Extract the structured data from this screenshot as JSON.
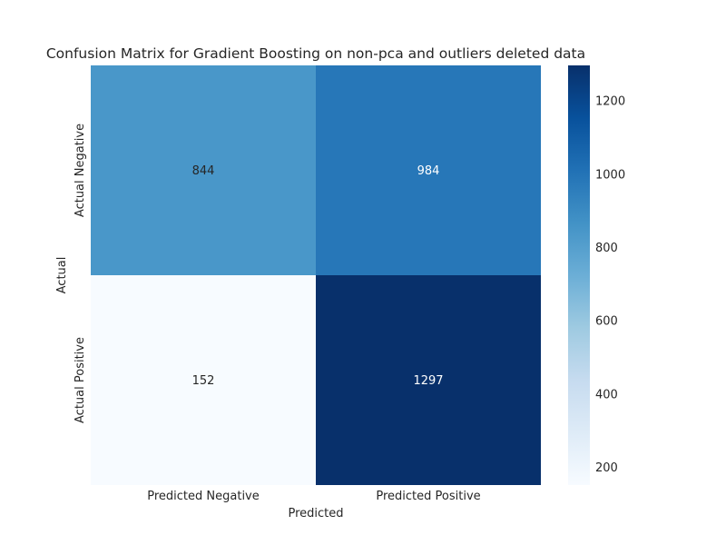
{
  "chart_data": {
    "type": "heatmap",
    "title": "Confusion Matrix for Gradient Boosting on non-pca and outliers deleted data",
    "xlabel": "Predicted",
    "ylabel": "Actual",
    "x_categories": [
      "Predicted Negative",
      "Predicted Positive"
    ],
    "y_categories": [
      "Actual Negative",
      "Actual Positive"
    ],
    "values": [
      [
        844,
        984
      ],
      [
        152,
        1297
      ]
    ],
    "colormap": "Blues",
    "colorbar": {
      "range": [
        152,
        1297
      ],
      "ticks": [
        200,
        400,
        600,
        800,
        1000,
        1200
      ],
      "tick_labels": [
        "200",
        "400",
        "600",
        "800",
        "1000",
        "1200"
      ]
    },
    "grid": false
  }
}
